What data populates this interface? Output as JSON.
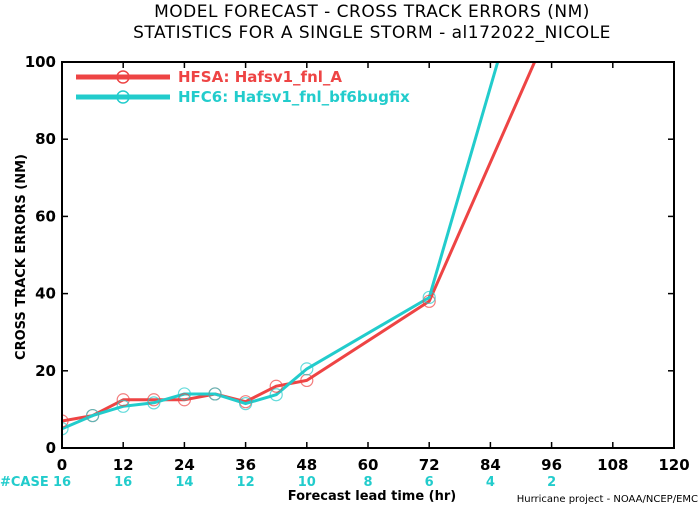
{
  "colors": {
    "hfsa": "#ee4444",
    "hfc6": "#22cccc"
  },
  "chart_data": {
    "type": "line",
    "title": "MODEL FORECAST - CROSS TRACK ERRORS (NM)",
    "subtitle": "STATISTICS FOR A SINGLE STORM - al172022_NICOLE",
    "xlabel": "Forecast lead time (hr)",
    "ylabel": "CROSS TRACK ERRORS (NM)",
    "xlim": [
      0,
      120
    ],
    "ylim": [
      0,
      100
    ],
    "xticks": [
      0,
      12,
      24,
      36,
      48,
      60,
      72,
      84,
      96,
      108,
      120
    ],
    "yticks": [
      0,
      20,
      40,
      60,
      80,
      100
    ],
    "legend_position": "top-left",
    "series": [
      {
        "name": "HFSA: Hafsv1_fnl_A",
        "x": [
          0,
          6,
          12,
          18,
          24,
          30,
          36,
          42,
          48,
          72,
          96
        ],
        "y": [
          7,
          8.4,
          12.5,
          12.5,
          12.5,
          14,
          12,
          16,
          17.5,
          38,
          110
        ]
      },
      {
        "name": "HFC6: Hafsv1_fnl_bf6bugfix",
        "x": [
          0,
          6,
          12,
          18,
          24,
          30,
          36,
          42,
          48,
          72,
          96
        ],
        "y": [
          5,
          8.4,
          10.8,
          11.7,
          14,
          14,
          11.5,
          13.8,
          20.5,
          39,
          148
        ]
      }
    ],
    "case_label": "#CASE",
    "case_counts": [
      {
        "x": 0,
        "text": "16"
      },
      {
        "x": 12,
        "text": "16"
      },
      {
        "x": 24,
        "text": "14"
      },
      {
        "x": 36,
        "text": "12"
      },
      {
        "x": 48,
        "text": "10"
      },
      {
        "x": 60,
        "text": "8"
      },
      {
        "x": 72,
        "text": "6"
      },
      {
        "x": 84,
        "text": "4"
      },
      {
        "x": 96,
        "text": "2"
      }
    ]
  },
  "credit": "Hurricane project - NOAA/NCEP/EMC"
}
